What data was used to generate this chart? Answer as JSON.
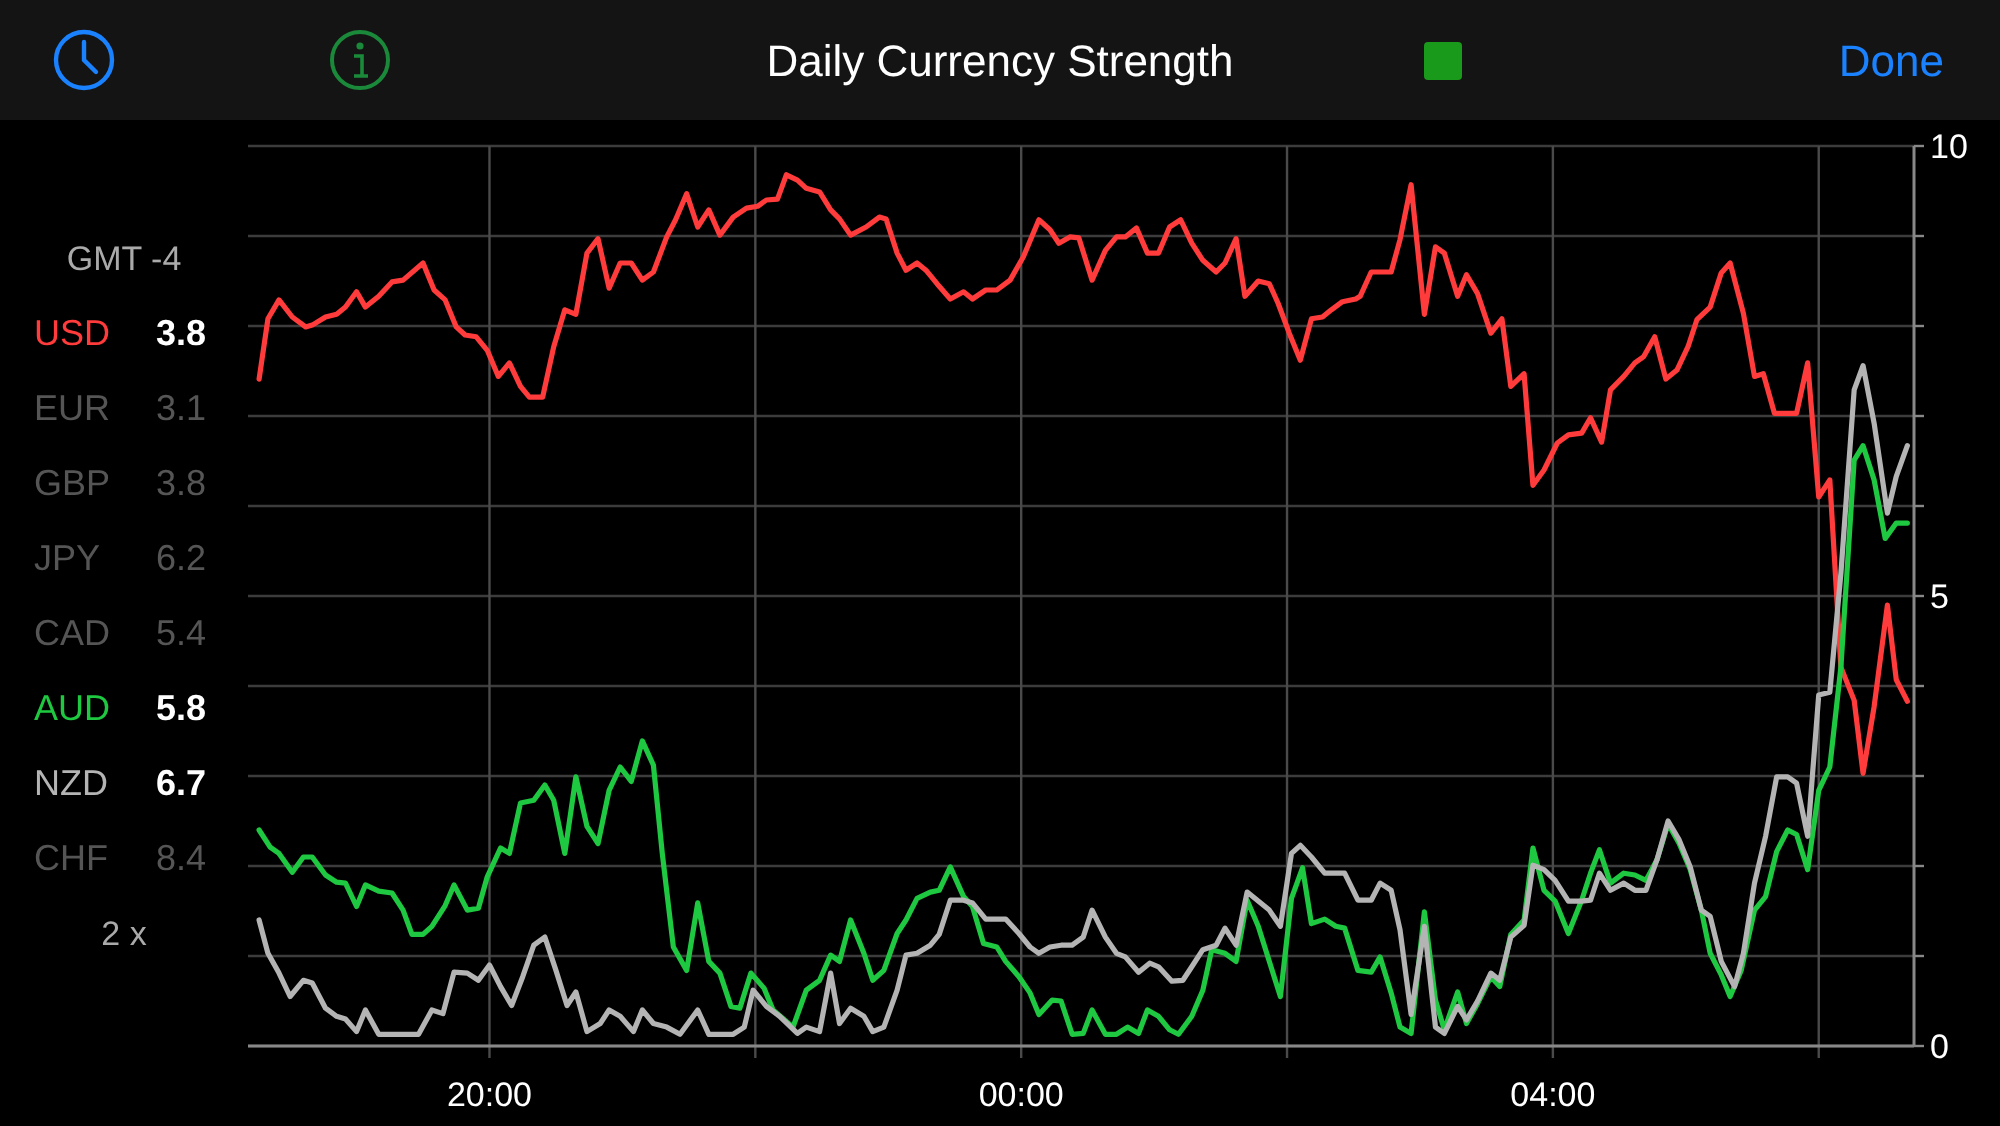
{
  "chart_data": {
    "type": "line",
    "title": "Daily Currency Strength",
    "annotations": [
      "GMT -4",
      "EUR 3.1",
      "GBP 3.8",
      "JPY 6.2",
      "CAD 5.4",
      "CHF 8.4",
      "2 x",
      "Done",
      "3.8",
      "5.8",
      "6.7"
    ],
    "xlim": [
      "2000-01-01T18:11",
      "2000-01-02T06:43"
    ],
    "xticks": [
      {
        "value": "2000-01-01T20:00",
        "label": "20:00"
      },
      {
        "value": "2000-01-01T22:00",
        "label": null
      },
      {
        "value": "2000-01-02T00:00",
        "label": "00:00"
      },
      {
        "value": "2000-01-02T02:00",
        "label": null
      },
      {
        "value": "2000-01-02T04:00",
        "label": "04:00"
      },
      {
        "value": "2000-01-02T06:00",
        "label": null
      }
    ],
    "ylim": [
      0,
      10
    ],
    "yticks": [
      0,
      {
        "value": 1,
        "label": null
      },
      {
        "value": 2,
        "label": null
      },
      {
        "value": 3,
        "label": null
      },
      {
        "value": 4,
        "label": null
      },
      5,
      {
        "value": 6,
        "label": null
      },
      {
        "value": 7,
        "label": null
      },
      {
        "value": 8,
        "label": null
      },
      {
        "value": 9,
        "label": null
      },
      10
    ],
    "grid": true,
    "legend": "left",
    "series": [
      {
        "name": "USD",
        "color": "#ff3b3b",
        "x": [
          "2000-01-01T18:16",
          "2000-01-01T18:20",
          "2000-01-01T18:25",
          "2000-01-01T18:31",
          "2000-01-01T18:37",
          "2000-01-01T18:40",
          "2000-01-01T18:46",
          "2000-01-01T18:51",
          "2000-01-01T18:55",
          "2000-01-01T19:00",
          "2000-01-01T19:04",
          "2000-01-01T19:10",
          "2000-01-01T19:16",
          "2000-01-01T19:21",
          "2000-01-01T19:30",
          "2000-01-01T19:35",
          "2000-01-01T19:40",
          "2000-01-01T19:45",
          "2000-01-01T19:49",
          "2000-01-01T19:54",
          "2000-01-01T19:59",
          "2000-01-01T20:04",
          "2000-01-01T20:09",
          "2000-01-01T20:14",
          "2000-01-01T20:18",
          "2000-01-01T20:24",
          "2000-01-01T20:29",
          "2000-01-01T20:34",
          "2000-01-01T20:39",
          "2000-01-01T20:44",
          "2000-01-01T20:49",
          "2000-01-01T20:54",
          "2000-01-01T20:59",
          "2000-01-01T21:04",
          "2000-01-01T21:09",
          "2000-01-01T21:14",
          "2000-01-01T21:20",
          "2000-01-01T21:24",
          "2000-01-01T21:29",
          "2000-01-01T21:34",
          "2000-01-01T21:39",
          "2000-01-01T21:44",
          "2000-01-01T21:50",
          "2000-01-01T21:56",
          "2000-01-01T22:01",
          "2000-01-01T22:05",
          "2000-01-01T22:10",
          "2000-01-01T22:14",
          "2000-01-01T22:19",
          "2000-01-01T22:23",
          "2000-01-01T22:29",
          "2000-01-01T22:34",
          "2000-01-01T22:38",
          "2000-01-01T22:43",
          "2000-01-01T22:50",
          "2000-01-01T22:56",
          "2000-01-01T22:59",
          "2000-01-01T23:04",
          "2000-01-01T23:08",
          "2000-01-01T23:13",
          "2000-01-01T23:17",
          "2000-01-01T23:22",
          "2000-01-01T23:28",
          "2000-01-01T23:34",
          "2000-01-01T23:38",
          "2000-01-01T23:44",
          "2000-01-01T23:49",
          "2000-01-01T23:55",
          "2000-01-02T00:01",
          "2000-01-02T00:08",
          "2000-01-02T00:13",
          "2000-01-02T00:17",
          "2000-01-02T00:22",
          "2000-01-02T00:26",
          "2000-01-02T00:32",
          "2000-01-02T00:38",
          "2000-01-02T00:43",
          "2000-01-02T00:47",
          "2000-01-02T00:52",
          "2000-01-02T00:57",
          "2000-01-02T01:02",
          "2000-01-02T01:07",
          "2000-01-02T01:12",
          "2000-01-02T01:17",
          "2000-01-02T01:22",
          "2000-01-02T01:28",
          "2000-01-02T01:32",
          "2000-01-02T01:37",
          "2000-01-02T01:41",
          "2000-01-02T01:47",
          "2000-01-02T01:52",
          "2000-01-02T01:56",
          "2000-01-02T02:01",
          "2000-01-02T02:06",
          "2000-01-02T02:11",
          "2000-01-02T02:16",
          "2000-01-02T02:20",
          "2000-01-02T02:25",
          "2000-01-02T02:31",
          "2000-01-02T02:33",
          "2000-01-02T02:38",
          "2000-01-02T02:47",
          "2000-01-02T02:51",
          "2000-01-02T02:56",
          "2000-01-02T03:02",
          "2000-01-02T03:07",
          "2000-01-02T03:11",
          "2000-01-02T03:17",
          "2000-01-02T03:21",
          "2000-01-02T03:26",
          "2000-01-02T03:32",
          "2000-01-02T03:37",
          "2000-01-02T03:41",
          "2000-01-02T03:47",
          "2000-01-02T03:51",
          "2000-01-02T03:56",
          "2000-01-02T04:02",
          "2000-01-02T04:07",
          "2000-01-02T04:13",
          "2000-01-02T04:17",
          "2000-01-02T04:22",
          "2000-01-02T04:26",
          "2000-01-02T04:32",
          "2000-01-02T04:37",
          "2000-01-02T04:41",
          "2000-01-02T04:46",
          "2000-01-02T04:51",
          "2000-01-02T04:56",
          "2000-01-02T05:01",
          "2000-01-02T05:05",
          "2000-01-02T05:11",
          "2000-01-02T05:16",
          "2000-01-02T05:20",
          "2000-01-02T05:26",
          "2000-01-02T05:31",
          "2000-01-02T05:35",
          "2000-01-02T05:40",
          "2000-01-02T05:50",
          "2000-01-02T05:55",
          "2000-01-02T06:00",
          "2000-01-02T06:05",
          "2000-01-02T06:10",
          "2000-01-02T06:16",
          "2000-01-02T06:20",
          "2000-01-02T06:25",
          "2000-01-02T06:31",
          "2000-01-02T06:35",
          "2000-01-02T06:40"
        ],
        "values": [
          7.41,
          8.08,
          8.29,
          8.1,
          7.99,
          8.01,
          8.1,
          8.13,
          8.21,
          8.38,
          8.21,
          8.33,
          8.49,
          8.51,
          8.7,
          8.4,
          8.29,
          7.99,
          7.9,
          7.88,
          7.73,
          7.44,
          7.59,
          7.33,
          7.21,
          7.21,
          7.77,
          8.18,
          8.13,
          8.81,
          8.97,
          8.42,
          8.7,
          8.7,
          8.51,
          8.6,
          8.99,
          9.18,
          9.47,
          9.1,
          9.29,
          9.01,
          9.21,
          9.31,
          9.33,
          9.4,
          9.41,
          9.68,
          9.62,
          9.53,
          9.49,
          9.29,
          9.19,
          9.01,
          9.1,
          9.21,
          9.19,
          8.81,
          8.62,
          8.7,
          8.62,
          8.47,
          8.3,
          8.38,
          8.3,
          8.4,
          8.4,
          8.51,
          8.77,
          9.18,
          9.07,
          8.92,
          8.99,
          8.98,
          8.51,
          8.84,
          8.99,
          8.99,
          9.09,
          8.81,
          8.81,
          9.1,
          9.18,
          8.92,
          8.73,
          8.6,
          8.7,
          8.97,
          8.33,
          8.5,
          8.47,
          8.25,
          7.92,
          7.62,
          8.08,
          8.1,
          8.18,
          8.27,
          8.3,
          8.33,
          8.6,
          8.6,
          8.96,
          9.57,
          8.13,
          8.88,
          8.81,
          8.33,
          8.57,
          8.36,
          7.92,
          8.08,
          7.33,
          7.47,
          6.23,
          6.4,
          6.7,
          6.79,
          6.81,
          6.98,
          6.71,
          7.29,
          7.44,
          7.59,
          7.66,
          7.88,
          7.41,
          7.51,
          7.77,
          8.07,
          8.21,
          8.59,
          8.7,
          8.14,
          7.44,
          7.47,
          7.03,
          7.03,
          7.59,
          6.1,
          6.29,
          4.21,
          3.84,
          3.03,
          3.77,
          4.9,
          4.07,
          3.83
        ]
      },
      {
        "name": "AUD",
        "color": "#1ec840",
        "x": [
          "2000-01-01T18:16",
          "2000-01-01T18:21",
          "2000-01-01T18:25",
          "2000-01-01T18:31",
          "2000-01-01T18:36",
          "2000-01-01T18:40",
          "2000-01-01T18:46",
          "2000-01-01T18:51",
          "2000-01-01T18:55",
          "2000-01-01T19:00",
          "2000-01-01T19:04",
          "2000-01-01T19:10",
          "2000-01-01T19:16",
          "2000-01-01T19:21",
          "2000-01-01T19:25",
          "2000-01-01T19:30",
          "2000-01-01T19:34",
          "2000-01-01T19:40",
          "2000-01-01T19:44",
          "2000-01-01T19:50",
          "2000-01-01T19:55",
          "2000-01-01T19:59",
          "2000-01-01T20:05",
          "2000-01-01T20:09",
          "2000-01-01T20:14",
          "2000-01-01T20:20",
          "2000-01-01T20:25",
          "2000-01-01T20:29",
          "2000-01-01T20:34",
          "2000-01-01T20:39",
          "2000-01-01T20:44",
          "2000-01-01T20:49",
          "2000-01-01T20:54",
          "2000-01-01T20:59",
          "2000-01-01T21:04",
          "2000-01-01T21:09",
          "2000-01-01T21:14",
          "2000-01-01T21:18",
          "2000-01-01T21:23",
          "2000-01-01T21:29",
          "2000-01-01T21:34",
          "2000-01-01T21:39",
          "2000-01-01T21:44",
          "2000-01-01T21:49",
          "2000-01-01T21:53",
          "2000-01-01T21:58",
          "2000-01-01T22:04",
          "2000-01-01T22:08",
          "2000-01-01T22:17",
          "2000-01-01T22:23",
          "2000-01-01T22:29",
          "2000-01-01T22:34",
          "2000-01-01T22:38",
          "2000-01-01T22:43",
          "2000-01-01T22:49",
          "2000-01-01T22:53",
          "2000-01-01T22:58",
          "2000-01-01T23:04",
          "2000-01-01T23:08",
          "2000-01-01T23:13",
          "2000-01-01T23:19",
          "2000-01-01T23:23",
          "2000-01-01T23:28",
          "2000-01-01T23:34",
          "2000-01-01T23:38",
          "2000-01-01T23:43",
          "2000-01-01T23:49",
          "2000-01-01T23:53",
          "2000-01-01T23:59",
          "2000-01-02T00:04",
          "2000-01-02T00:08",
          "2000-01-02T00:14",
          "2000-01-02T00:18",
          "2000-01-02T00:23",
          "2000-01-02T00:28",
          "2000-01-02T00:32",
          "2000-01-02T00:38",
          "2000-01-02T00:43",
          "2000-01-02T00:48",
          "2000-01-02T00:53",
          "2000-01-02T00:57",
          "2000-01-02T01:02",
          "2000-01-02T01:07",
          "2000-01-02T01:11",
          "2000-01-02T01:17",
          "2000-01-02T01:22",
          "2000-01-02T01:26",
          "2000-01-02T01:32",
          "2000-01-02T01:37",
          "2000-01-02T01:42",
          "2000-01-02T01:47",
          "2000-01-02T01:57",
          "2000-01-02T02:02",
          "2000-01-02T02:07",
          "2000-01-02T02:11",
          "2000-01-02T02:17",
          "2000-01-02T02:22",
          "2000-01-02T02:26",
          "2000-01-02T02:32",
          "2000-01-02T02:38",
          "2000-01-02T02:42",
          "2000-01-02T02:47",
          "2000-01-02T02:51",
          "2000-01-02T02:56",
          "2000-01-02T03:02",
          "2000-01-02T03:07",
          "2000-01-02T03:11",
          "2000-01-02T03:17",
          "2000-01-02T03:21",
          "2000-01-02T03:26",
          "2000-01-02T03:32",
          "2000-01-02T03:36",
          "2000-01-02T03:41",
          "2000-01-02T03:47",
          "2000-01-02T03:51",
          "2000-01-02T03:56",
          "2000-01-02T04:01",
          "2000-01-02T04:07",
          "2000-01-02T04:13",
          "2000-01-02T04:17",
          "2000-01-02T04:21",
          "2000-01-02T04:26",
          "2000-01-02T04:32",
          "2000-01-02T04:37",
          "2000-01-02T04:42",
          "2000-01-02T04:47",
          "2000-01-02T04:52",
          "2000-01-02T04:57",
          "2000-01-02T05:02",
          "2000-01-02T05:07",
          "2000-01-02T05:11",
          "2000-01-02T05:16",
          "2000-01-02T05:20",
          "2000-01-02T05:25",
          "2000-01-02T05:31",
          "2000-01-02T05:36",
          "2000-01-02T05:41",
          "2000-01-02T05:46",
          "2000-01-02T05:50",
          "2000-01-02T05:55",
          "2000-01-02T06:00",
          "2000-01-02T06:05",
          "2000-01-02T06:10",
          "2000-01-02T06:16",
          "2000-01-02T06:20",
          "2000-01-02T06:25",
          "2000-01-02T06:30",
          "2000-01-02T06:35",
          "2000-01-02T06:40"
        ],
        "values": [
          2.4,
          2.21,
          2.14,
          1.93,
          2.1,
          2.1,
          1.9,
          1.82,
          1.81,
          1.55,
          1.79,
          1.72,
          1.7,
          1.51,
          1.24,
          1.24,
          1.33,
          1.56,
          1.79,
          1.51,
          1.53,
          1.88,
          2.2,
          2.14,
          2.7,
          2.73,
          2.9,
          2.73,
          2.14,
          2.99,
          2.44,
          2.25,
          2.84,
          3.1,
          2.94,
          3.39,
          3.12,
          2.14,
          1.1,
          0.84,
          1.59,
          0.94,
          0.81,
          0.44,
          0.42,
          0.81,
          0.64,
          0.4,
          0.21,
          0.62,
          0.73,
          1.01,
          0.94,
          1.4,
          1.03,
          0.73,
          0.84,
          1.25,
          1.4,
          1.64,
          1.71,
          1.73,
          1.99,
          1.66,
          1.55,
          1.14,
          1.1,
          0.94,
          0.77,
          0.59,
          0.35,
          0.51,
          0.5,
          0.13,
          0.14,
          0.4,
          0.13,
          0.13,
          0.21,
          0.14,
          0.4,
          0.33,
          0.18,
          0.13,
          0.33,
          0.62,
          1.07,
          1.03,
          0.94,
          1.62,
          1.33,
          0.55,
          1.64,
          1.98,
          1.36,
          1.41,
          1.33,
          1.31,
          0.84,
          0.82,
          0.99,
          0.59,
          0.21,
          0.14,
          1.49,
          0.51,
          0.18,
          0.6,
          0.25,
          0.47,
          0.77,
          0.66,
          1.24,
          1.4,
          2.2,
          1.73,
          1.61,
          1.25,
          1.62,
          1.92,
          2.18,
          1.81,
          1.92,
          1.9,
          1.84,
          2.07,
          2.47,
          2.25,
          1.96,
          1.51,
          1.03,
          0.79,
          0.55,
          0.84,
          1.51,
          1.66,
          2.16,
          2.4,
          2.35,
          1.96,
          2.84,
          3.1,
          4.21,
          6.51,
          6.67,
          6.29,
          5.64,
          5.81,
          5.81
        ]
      },
      {
        "name": "NZD",
        "color": "#b4b4b4",
        "x": [
          "2000-01-01T18:16",
          "2000-01-01T18:20",
          "2000-01-01T18:25",
          "2000-01-01T18:30",
          "2000-01-01T18:36",
          "2000-01-01T18:40",
          "2000-01-01T18:46",
          "2000-01-01T18:51",
          "2000-01-01T18:55",
          "2000-01-01T19:00",
          "2000-01-01T19:04",
          "2000-01-01T19:10",
          "2000-01-01T19:19",
          "2000-01-01T19:28",
          "2000-01-01T19:34",
          "2000-01-01T19:39",
          "2000-01-01T19:44",
          "2000-01-01T19:50",
          "2000-01-01T19:55",
          "2000-01-01T20:00",
          "2000-01-01T20:05",
          "2000-01-01T20:10",
          "2000-01-01T20:15",
          "2000-01-01T20:20",
          "2000-01-01T20:25",
          "2000-01-01T20:30",
          "2000-01-01T20:35",
          "2000-01-01T20:39",
          "2000-01-01T20:44",
          "2000-01-01T20:50",
          "2000-01-01T20:54",
          "2000-01-01T20:59",
          "2000-01-01T21:05",
          "2000-01-01T21:09",
          "2000-01-01T21:14",
          "2000-01-01T21:20",
          "2000-01-01T21:26",
          "2000-01-01T21:34",
          "2000-01-01T21:39",
          "2000-01-01T21:50",
          "2000-01-01T21:55",
          "2000-01-01T21:59",
          "2000-01-01T22:05",
          "2000-01-01T22:11",
          "2000-01-01T22:19",
          "2000-01-01T22:23",
          "2000-01-01T22:29",
          "2000-01-01T22:34",
          "2000-01-01T22:38",
          "2000-01-01T22:43",
          "2000-01-01T22:49",
          "2000-01-01T22:53",
          "2000-01-01T22:58",
          "2000-01-01T23:04",
          "2000-01-01T23:08",
          "2000-01-01T23:13",
          "2000-01-01T23:19",
          "2000-01-01T23:23",
          "2000-01-01T23:28",
          "2000-01-01T23:34",
          "2000-01-01T23:38",
          "2000-01-01T23:44",
          "2000-01-01T23:53",
          "2000-01-01T23:59",
          "2000-01-02T00:04",
          "2000-01-02T00:08",
          "2000-01-02T00:13",
          "2000-01-02T00:18",
          "2000-01-02T00:23",
          "2000-01-02T00:28",
          "2000-01-02T00:32",
          "2000-01-02T00:38",
          "2000-01-02T00:43",
          "2000-01-02T00:47",
          "2000-01-02T00:53",
          "2000-01-02T00:58",
          "2000-01-02T01:02",
          "2000-01-02T01:08",
          "2000-01-02T01:13",
          "2000-01-02T01:17",
          "2000-01-02T01:22",
          "2000-01-02T01:28",
          "2000-01-02T01:32",
          "2000-01-02T01:37",
          "2000-01-02T01:42",
          "2000-01-02T01:47",
          "2000-01-02T01:52",
          "2000-01-02T01:57",
          "2000-01-02T02:02",
          "2000-01-02T02:06",
          "2000-01-02T02:11",
          "2000-01-02T02:17",
          "2000-01-02T02:26",
          "2000-01-02T02:32",
          "2000-01-02T02:38",
          "2000-01-02T02:42",
          "2000-01-02T02:47",
          "2000-01-02T02:51",
          "2000-01-02T02:56",
          "2000-01-02T03:02",
          "2000-01-02T03:07",
          "2000-01-02T03:11",
          "2000-01-02T03:17",
          "2000-01-02T03:21",
          "2000-01-02T03:26",
          "2000-01-02T03:32",
          "2000-01-02T03:36",
          "2000-01-02T03:41",
          "2000-01-02T03:47",
          "2000-01-02T03:51",
          "2000-01-02T03:56",
          "2000-01-02T04:01",
          "2000-01-02T04:07",
          "2000-01-02T04:13",
          "2000-01-02T04:17",
          "2000-01-02T04:21",
          "2000-01-02T04:26",
          "2000-01-02T04:32",
          "2000-01-02T04:37",
          "2000-01-02T04:42",
          "2000-01-02T04:47",
          "2000-01-02T04:52",
          "2000-01-02T04:57",
          "2000-01-02T05:02",
          "2000-01-02T05:07",
          "2000-01-02T05:11",
          "2000-01-02T05:16",
          "2000-01-02T05:22",
          "2000-01-02T05:26",
          "2000-01-02T05:31",
          "2000-01-02T05:36",
          "2000-01-02T05:41",
          "2000-01-02T05:46",
          "2000-01-02T05:50",
          "2000-01-02T05:55",
          "2000-01-02T06:00",
          "2000-01-02T06:05",
          "2000-01-02T06:10",
          "2000-01-02T06:16",
          "2000-01-02T06:20",
          "2000-01-02T06:25",
          "2000-01-02T06:31",
          "2000-01-02T06:35",
          "2000-01-02T06:40"
        ],
        "values": [
          1.4,
          1.03,
          0.81,
          0.55,
          0.73,
          0.7,
          0.42,
          0.33,
          0.3,
          0.16,
          0.4,
          0.13,
          0.13,
          0.13,
          0.4,
          0.36,
          0.82,
          0.81,
          0.73,
          0.9,
          0.66,
          0.45,
          0.77,
          1.12,
          1.21,
          0.84,
          0.45,
          0.6,
          0.16,
          0.25,
          0.4,
          0.33,
          0.16,
          0.4,
          0.25,
          0.21,
          0.13,
          0.4,
          0.13,
          0.13,
          0.21,
          0.62,
          0.44,
          0.33,
          0.14,
          0.21,
          0.16,
          0.81,
          0.25,
          0.42,
          0.33,
          0.16,
          0.21,
          0.62,
          1.01,
          1.03,
          1.12,
          1.24,
          1.62,
          1.62,
          1.59,
          1.41,
          1.41,
          1.25,
          1.1,
          1.03,
          1.1,
          1.12,
          1.12,
          1.21,
          1.51,
          1.21,
          1.03,
          0.99,
          0.82,
          0.92,
          0.88,
          0.72,
          0.73,
          0.88,
          1.07,
          1.12,
          1.31,
          1.12,
          1.71,
          1.61,
          1.51,
          1.33,
          2.14,
          2.23,
          2.1,
          1.92,
          1.92,
          1.62,
          1.62,
          1.81,
          1.73,
          1.29,
          0.35,
          1.33,
          0.21,
          0.14,
          0.44,
          0.29,
          0.5,
          0.81,
          0.73,
          1.21,
          1.34,
          2.01,
          1.96,
          1.84,
          1.61,
          1.61,
          1.62,
          1.92,
          1.73,
          1.81,
          1.73,
          1.73,
          2.07,
          2.5,
          2.29,
          1.99,
          1.51,
          1.44,
          0.94,
          0.66,
          1.03,
          1.81,
          2.33,
          2.99,
          2.99,
          2.92,
          2.33,
          3.9,
          3.93,
          5.25,
          7.29,
          7.56,
          6.92,
          5.92,
          6.33,
          6.67
        ]
      }
    ]
  }
}
